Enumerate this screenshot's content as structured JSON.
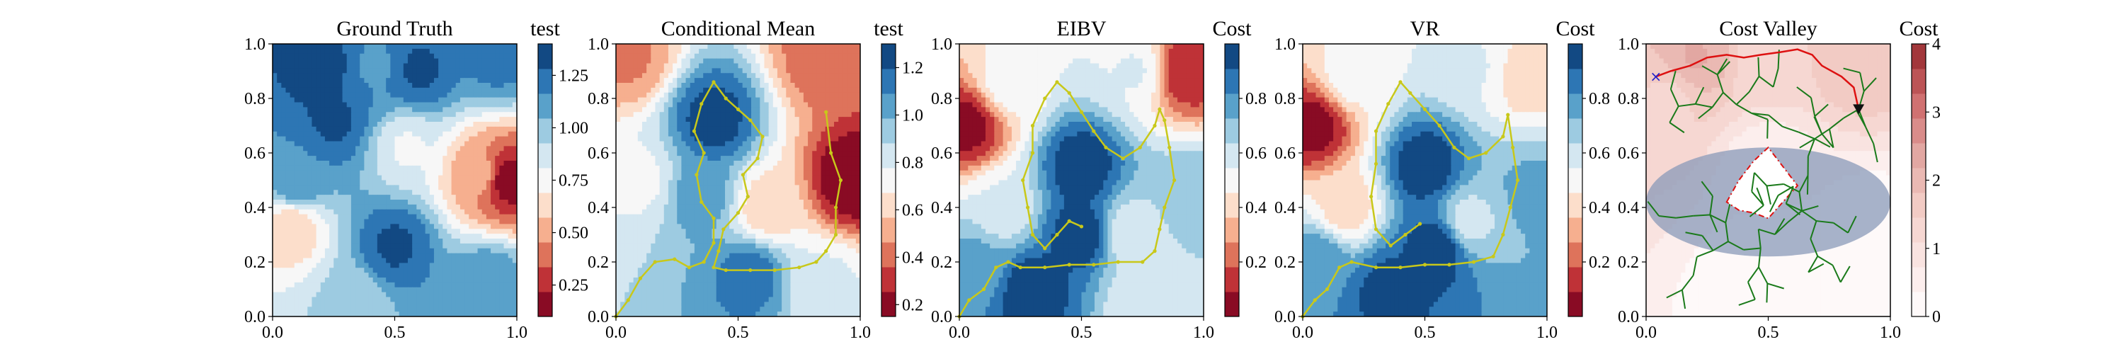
{
  "chart_data": [
    {
      "type": "heatmap",
      "title": "Ground Truth",
      "colorbar_label": "test",
      "colormap": "RdBu",
      "xlim": [
        0,
        1
      ],
      "ylim": [
        0,
        1
      ],
      "x_ticks": [
        "0.0",
        "0.5",
        "1.0"
      ],
      "y_ticks": [
        "0.0",
        "0.2",
        "0.4",
        "0.6",
        "0.8",
        "1.0"
      ],
      "colorbar_range": [
        0.1,
        1.4
      ],
      "colorbar_ticks": [
        "0.25",
        "0.50",
        "0.75",
        "1.00",
        "1.25"
      ],
      "colorbar_tick_values": [
        0.25,
        0.5,
        0.75,
        1.0,
        1.25
      ],
      "field": [
        {
          "x": 0.2,
          "y": 0.92,
          "v": 1.35
        },
        {
          "x": 0.42,
          "y": 0.92,
          "v": 1.15
        },
        {
          "x": 0.6,
          "y": 0.9,
          "v": 1.3
        },
        {
          "x": 0.25,
          "y": 0.72,
          "v": 1.3
        },
        {
          "x": 0.1,
          "y": 0.5,
          "v": 1.15
        },
        {
          "x": 0.55,
          "y": 0.62,
          "v": 0.8
        },
        {
          "x": 0.08,
          "y": 0.32,
          "v": 0.6
        },
        {
          "x": 0.5,
          "y": 0.26,
          "v": 1.3
        },
        {
          "x": 0.88,
          "y": 0.12,
          "v": 1.15
        },
        {
          "x": 0.32,
          "y": 0.05,
          "v": 0.95
        },
        {
          "x": 0.96,
          "y": 0.5,
          "v": 0.15
        },
        {
          "x": 0.85,
          "y": 0.52,
          "v": 0.5
        },
        {
          "x": 0.92,
          "y": 0.95,
          "v": 1.2
        }
      ]
    },
    {
      "type": "heatmap",
      "title": "Conditional Mean",
      "colorbar_label": "test",
      "colormap": "RdBu",
      "xlim": [
        0,
        1
      ],
      "ylim": [
        0,
        1
      ],
      "x_ticks": [
        "0.0",
        "0.5",
        "1.0"
      ],
      "y_ticks": [
        "0.0",
        "0.2",
        "0.4",
        "0.6",
        "0.8",
        "1.0"
      ],
      "colorbar_range": [
        0.15,
        1.3
      ],
      "colorbar_ticks": [
        "0.2",
        "0.4",
        "0.6",
        "0.8",
        "1.0",
        "1.2"
      ],
      "colorbar_tick_values": [
        0.2,
        0.4,
        0.6,
        0.8,
        1.0,
        1.2
      ],
      "field": [
        {
          "x": 0.4,
          "y": 0.72,
          "v": 1.25
        },
        {
          "x": 0.35,
          "y": 0.45,
          "v": 1.05
        },
        {
          "x": 0.55,
          "y": 0.15,
          "v": 1.15
        },
        {
          "x": 0.96,
          "y": 0.5,
          "v": 0.15
        },
        {
          "x": 0.05,
          "y": 0.95,
          "v": 0.45
        },
        {
          "x": 0.85,
          "y": 0.95,
          "v": 0.4
        },
        {
          "x": 0.1,
          "y": 0.5,
          "v": 0.75
        },
        {
          "x": 0.85,
          "y": 0.12,
          "v": 0.8
        },
        {
          "x": 0.62,
          "y": 0.4,
          "v": 0.6
        }
      ],
      "path": [
        [
          0,
          0
        ],
        [
          0.05,
          0.06
        ],
        [
          0.1,
          0.14
        ],
        [
          0.16,
          0.2
        ],
        [
          0.24,
          0.21
        ],
        [
          0.3,
          0.18
        ],
        [
          0.36,
          0.2
        ],
        [
          0.4,
          0.27
        ],
        [
          0.4,
          0.36
        ],
        [
          0.35,
          0.42
        ],
        [
          0.33,
          0.52
        ],
        [
          0.36,
          0.6
        ],
        [
          0.32,
          0.68
        ],
        [
          0.35,
          0.78
        ],
        [
          0.4,
          0.86
        ],
        [
          0.45,
          0.8
        ],
        [
          0.5,
          0.76
        ],
        [
          0.55,
          0.72
        ],
        [
          0.6,
          0.66
        ],
        [
          0.58,
          0.58
        ],
        [
          0.52,
          0.52
        ],
        [
          0.54,
          0.44
        ],
        [
          0.5,
          0.38
        ],
        [
          0.44,
          0.32
        ],
        [
          0.42,
          0.24
        ],
        [
          0.4,
          0.18
        ],
        [
          0.45,
          0.17
        ],
        [
          0.55,
          0.17
        ],
        [
          0.65,
          0.17
        ],
        [
          0.75,
          0.18
        ],
        [
          0.82,
          0.2
        ],
        [
          0.86,
          0.24
        ],
        [
          0.9,
          0.3
        ],
        [
          0.9,
          0.4
        ],
        [
          0.92,
          0.5
        ],
        [
          0.88,
          0.6
        ],
        [
          0.86,
          0.75
        ]
      ]
    },
    {
      "type": "heatmap",
      "title": "EIBV",
      "colorbar_label": "Cost",
      "colormap": "RdBu",
      "xlim": [
        0,
        1
      ],
      "ylim": [
        0,
        1
      ],
      "x_ticks": [
        "0.0",
        "0.5",
        "1.0"
      ],
      "y_ticks": [
        "0.0",
        "0.2",
        "0.4",
        "0.6",
        "0.8",
        "1.0"
      ],
      "colorbar_range": [
        0.0,
        1.0
      ],
      "colorbar_ticks": [
        "0.2",
        "0.4",
        "0.6",
        "0.8"
      ],
      "colorbar_tick_values": [
        0.2,
        0.4,
        0.6,
        0.8
      ],
      "field": [
        {
          "x": 0.04,
          "y": 0.7,
          "v": 0.05
        },
        {
          "x": 0.93,
          "y": 0.9,
          "v": 0.1
        },
        {
          "x": 0.18,
          "y": 0.4,
          "v": 0.55
        },
        {
          "x": 0.2,
          "y": 0.85,
          "v": 0.5
        },
        {
          "x": 0.72,
          "y": 0.9,
          "v": 0.55
        },
        {
          "x": 0.95,
          "y": 0.45,
          "v": 0.7
        },
        {
          "x": 0.7,
          "y": 0.3,
          "v": 0.55
        },
        {
          "x": 0.75,
          "y": 0.07,
          "v": 0.55
        },
        {
          "x": 0.06,
          "y": 0.2,
          "v": 0.75
        },
        {
          "x": 0.5,
          "y": 0.55,
          "v": 0.98
        },
        {
          "x": 0.5,
          "y": 0.3,
          "v": 0.98
        },
        {
          "x": 0.3,
          "y": 0.1,
          "v": 0.98
        }
      ],
      "path": [
        [
          0,
          0
        ],
        [
          0.04,
          0.06
        ],
        [
          0.1,
          0.1
        ],
        [
          0.15,
          0.18
        ],
        [
          0.2,
          0.2
        ],
        [
          0.25,
          0.18
        ],
        [
          0.35,
          0.18
        ],
        [
          0.45,
          0.19
        ],
        [
          0.55,
          0.19
        ],
        [
          0.65,
          0.2
        ],
        [
          0.75,
          0.2
        ],
        [
          0.8,
          0.24
        ],
        [
          0.82,
          0.32
        ],
        [
          0.84,
          0.4
        ],
        [
          0.88,
          0.5
        ],
        [
          0.86,
          0.62
        ],
        [
          0.84,
          0.72
        ],
        [
          0.82,
          0.76
        ],
        [
          0.8,
          0.7
        ],
        [
          0.74,
          0.62
        ],
        [
          0.67,
          0.58
        ],
        [
          0.6,
          0.62
        ],
        [
          0.55,
          0.68
        ],
        [
          0.5,
          0.75
        ],
        [
          0.45,
          0.82
        ],
        [
          0.4,
          0.86
        ],
        [
          0.35,
          0.8
        ],
        [
          0.3,
          0.7
        ],
        [
          0.3,
          0.6
        ],
        [
          0.26,
          0.5
        ],
        [
          0.28,
          0.4
        ],
        [
          0.3,
          0.3
        ],
        [
          0.35,
          0.25
        ],
        [
          0.4,
          0.3
        ],
        [
          0.45,
          0.35
        ],
        [
          0.5,
          0.33
        ]
      ]
    },
    {
      "type": "heatmap",
      "title": "VR",
      "colorbar_label": "Cost",
      "colormap": "RdBu",
      "xlim": [
        0,
        1
      ],
      "ylim": [
        0,
        1
      ],
      "x_ticks": [
        "0.0",
        "0.5",
        "1.0"
      ],
      "y_ticks": [
        "0.0",
        "0.2",
        "0.4",
        "0.6",
        "0.8",
        "1.0"
      ],
      "colorbar_range": [
        0.0,
        1.0
      ],
      "colorbar_ticks": [
        "0.2",
        "0.4",
        "0.6",
        "0.8"
      ],
      "colorbar_tick_values": [
        0.2,
        0.4,
        0.6,
        0.8
      ],
      "field": [
        {
          "x": 0.05,
          "y": 0.7,
          "v": 0.05
        },
        {
          "x": 0.18,
          "y": 0.4,
          "v": 0.4
        },
        {
          "x": 0.2,
          "y": 0.88,
          "v": 0.5
        },
        {
          "x": 0.92,
          "y": 0.88,
          "v": 0.4
        },
        {
          "x": 0.7,
          "y": 0.92,
          "v": 0.55
        },
        {
          "x": 0.68,
          "y": 0.35,
          "v": 0.6
        },
        {
          "x": 0.95,
          "y": 0.45,
          "v": 0.75
        },
        {
          "x": 0.06,
          "y": 0.2,
          "v": 0.8
        },
        {
          "x": 0.5,
          "y": 0.55,
          "v": 0.98
        },
        {
          "x": 0.55,
          "y": 0.25,
          "v": 0.98
        },
        {
          "x": 0.35,
          "y": 0.1,
          "v": 0.95
        }
      ],
      "path": [
        [
          0,
          0
        ],
        [
          0.05,
          0.06
        ],
        [
          0.1,
          0.1
        ],
        [
          0.15,
          0.18
        ],
        [
          0.2,
          0.2
        ],
        [
          0.3,
          0.18
        ],
        [
          0.4,
          0.18
        ],
        [
          0.5,
          0.19
        ],
        [
          0.6,
          0.19
        ],
        [
          0.7,
          0.2
        ],
        [
          0.78,
          0.22
        ],
        [
          0.82,
          0.3
        ],
        [
          0.85,
          0.4
        ],
        [
          0.88,
          0.5
        ],
        [
          0.86,
          0.62
        ],
        [
          0.84,
          0.74
        ],
        [
          0.82,
          0.66
        ],
        [
          0.75,
          0.6
        ],
        [
          0.68,
          0.58
        ],
        [
          0.62,
          0.62
        ],
        [
          0.56,
          0.7
        ],
        [
          0.5,
          0.76
        ],
        [
          0.44,
          0.82
        ],
        [
          0.4,
          0.86
        ],
        [
          0.35,
          0.78
        ],
        [
          0.3,
          0.68
        ],
        [
          0.3,
          0.56
        ],
        [
          0.28,
          0.44
        ],
        [
          0.3,
          0.32
        ],
        [
          0.36,
          0.26
        ],
        [
          0.42,
          0.3
        ],
        [
          0.48,
          0.34
        ]
      ]
    },
    {
      "type": "heatmap",
      "title": "Cost Valley",
      "colorbar_label": "Cost",
      "colormap": "Reds",
      "xlim": [
        0,
        1
      ],
      "ylim": [
        0,
        1
      ],
      "x_ticks": [
        "0.0",
        "0.5",
        "1.0"
      ],
      "y_ticks": [
        "0.0",
        "0.2",
        "0.4",
        "0.6",
        "0.8",
        "1.0"
      ],
      "colorbar_range": [
        0,
        4
      ],
      "colorbar_ticks": [
        "0",
        "1",
        "2",
        "3",
        "4"
      ],
      "colorbar_tick_values": [
        0,
        1,
        2,
        3,
        4
      ],
      "field": [
        {
          "x": 0.2,
          "y": 0.95,
          "v": 2.2
        },
        {
          "x": 0.5,
          "y": 0.92,
          "v": 1.2
        },
        {
          "x": 0.85,
          "y": 0.96,
          "v": 1.8
        },
        {
          "x": 0.1,
          "y": 0.8,
          "v": 1.4
        },
        {
          "x": 0.5,
          "y": 0.55,
          "v": 0.4
        },
        {
          "x": 0.5,
          "y": 0.15,
          "v": 0.0
        },
        {
          "x": 0.9,
          "y": 0.3,
          "v": 0.1
        }
      ],
      "start_marker": [
        0.04,
        0.88
      ],
      "end_marker": [
        0.87,
        0.76
      ],
      "red_path": [
        [
          0.04,
          0.88
        ],
        [
          0.1,
          0.9
        ],
        [
          0.18,
          0.92
        ],
        [
          0.25,
          0.95
        ],
        [
          0.33,
          0.96
        ],
        [
          0.4,
          0.95
        ],
        [
          0.47,
          0.96
        ],
        [
          0.55,
          0.97
        ],
        [
          0.62,
          0.98
        ],
        [
          0.68,
          0.96
        ],
        [
          0.72,
          0.92
        ],
        [
          0.8,
          0.88
        ],
        [
          0.85,
          0.84
        ],
        [
          0.87,
          0.76
        ]
      ],
      "polygon": [
        [
          0.33,
          0.42
        ],
        [
          0.38,
          0.5
        ],
        [
          0.44,
          0.57
        ],
        [
          0.5,
          0.62
        ],
        [
          0.56,
          0.55
        ],
        [
          0.62,
          0.48
        ],
        [
          0.56,
          0.42
        ],
        [
          0.5,
          0.36
        ],
        [
          0.44,
          0.38
        ],
        [
          0.38,
          0.39
        ]
      ]
    }
  ]
}
